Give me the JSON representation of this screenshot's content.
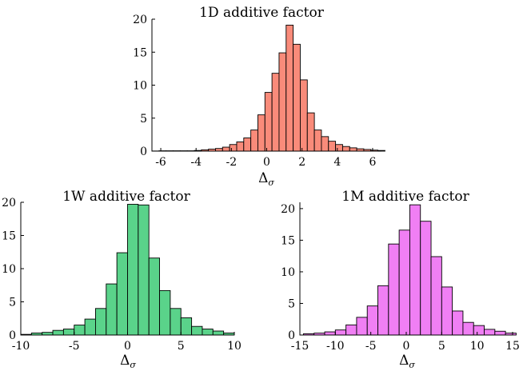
{
  "chart_data": [
    {
      "id": "d",
      "type": "bar",
      "title": "1D additive factor",
      "xlabel": "Δσ",
      "xlabel_main": "Δ",
      "xlabel_sub": "σ",
      "ylabel": "",
      "xlim": [
        -6.5,
        6.5
      ],
      "ylim": [
        0,
        20
      ],
      "xticks": [
        -6,
        -4,
        -2,
        0,
        2,
        4,
        6
      ],
      "yticks": [
        0,
        5,
        10,
        15,
        20
      ],
      "bin_start": -6.5,
      "bin_width": 0.4,
      "values": [
        0.02,
        0.05,
        0.05,
        0.05,
        0.05,
        0.05,
        0.1,
        0.2,
        0.3,
        0.4,
        0.6,
        1.0,
        1.4,
        2.0,
        3.2,
        5.5,
        8.9,
        11.8,
        14.9,
        19.1,
        16.2,
        10.8,
        5.8,
        3.2,
        2.2,
        1.5,
        1.0,
        0.7,
        0.5,
        0.35,
        0.25,
        0.15,
        0.1
      ],
      "color": "#f98b7a"
    },
    {
      "id": "w",
      "type": "bar",
      "title": "1W additive factor",
      "xlabel": "Δσ",
      "xlabel_main": "Δ",
      "xlabel_sub": "σ",
      "ylabel": "",
      "xlim": [
        -10,
        10
      ],
      "ylim": [
        0,
        20
      ],
      "xticks": [
        -10,
        -5,
        0,
        5,
        10
      ],
      "yticks": [
        0,
        5,
        10,
        15,
        20
      ],
      "bin_start": -10,
      "bin_width": 1,
      "values": [
        0.1,
        0.3,
        0.4,
        0.7,
        0.9,
        1.5,
        2.4,
        4.0,
        7.7,
        12.4,
        19.7,
        19.6,
        11.6,
        6.7,
        4.0,
        2.6,
        1.3,
        0.9,
        0.6,
        0.3
      ],
      "color": "#5ad38a"
    },
    {
      "id": "m",
      "type": "bar",
      "title": "1M additive factor",
      "xlabel": "Δσ",
      "xlabel_main": "Δ",
      "xlabel_sub": "σ",
      "ylabel": "",
      "xlim": [
        -15,
        15
      ],
      "ylim": [
        0,
        21
      ],
      "xticks": [
        -15,
        -10,
        -5,
        0,
        5,
        10,
        15
      ],
      "yticks": [
        0,
        5,
        10,
        15,
        20
      ],
      "bin_start": -14.5,
      "bin_width": 1.5,
      "values": [
        0.2,
        0.3,
        0.5,
        0.8,
        1.6,
        2.8,
        4.6,
        7.8,
        14.4,
        16.6,
        20.6,
        18.0,
        12.4,
        7.6,
        3.8,
        2.0,
        1.5,
        0.9,
        0.6,
        0.3
      ],
      "color": "#f07ff4"
    }
  ]
}
